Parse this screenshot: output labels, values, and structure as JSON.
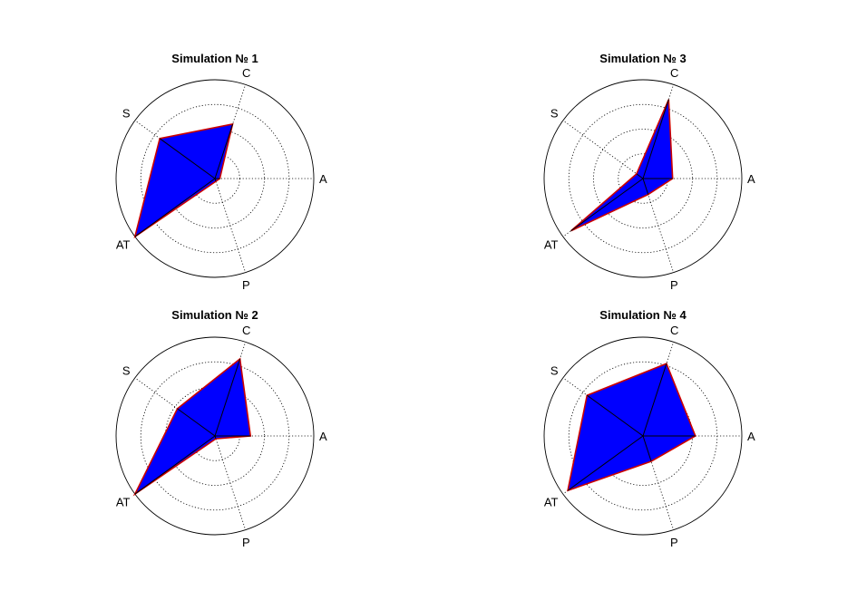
{
  "chart_data": [
    {
      "type": "radar",
      "title": "Simulation №  1",
      "categories": [
        "A",
        "C",
        "S",
        "AT",
        "P"
      ],
      "values": [
        0.05,
        0.58,
        0.69,
        1.0,
        0.03
      ],
      "rlim": [
        0,
        1
      ],
      "rings": [
        0.25,
        0.5,
        0.75
      ],
      "grid": true,
      "fill_color": "#0000ff",
      "edge_color": "#cc0000"
    },
    {
      "type": "radar",
      "title": "Simulation №  2",
      "categories": [
        "A",
        "C",
        "S",
        "AT",
        "P"
      ],
      "values": [
        0.36,
        0.82,
        0.47,
        1.0,
        0.03
      ],
      "rlim": [
        0,
        1
      ],
      "rings": [
        0.25,
        0.5,
        0.75
      ],
      "grid": true,
      "fill_color": "#0000ff",
      "edge_color": "#cc0000"
    },
    {
      "type": "radar",
      "title": "Simulation №  3",
      "categories": [
        "A",
        "C",
        "S",
        "AT",
        "P"
      ],
      "values": [
        0.3,
        0.84,
        0.08,
        0.9,
        0.17
      ],
      "rlim": [
        0,
        1
      ],
      "rings": [
        0.25,
        0.5,
        0.75
      ],
      "grid": true,
      "fill_color": "#0000ff",
      "edge_color": "#cc0000"
    },
    {
      "type": "radar",
      "title": "Simulation №  4",
      "categories": [
        "A",
        "C",
        "S",
        "AT",
        "P"
      ],
      "values": [
        0.53,
        0.77,
        0.7,
        0.94,
        0.27
      ],
      "rlim": [
        0,
        1
      ],
      "rings": [
        0.25,
        0.5,
        0.75
      ],
      "grid": true,
      "fill_color": "#0000ff",
      "edge_color": "#cc0000"
    }
  ]
}
